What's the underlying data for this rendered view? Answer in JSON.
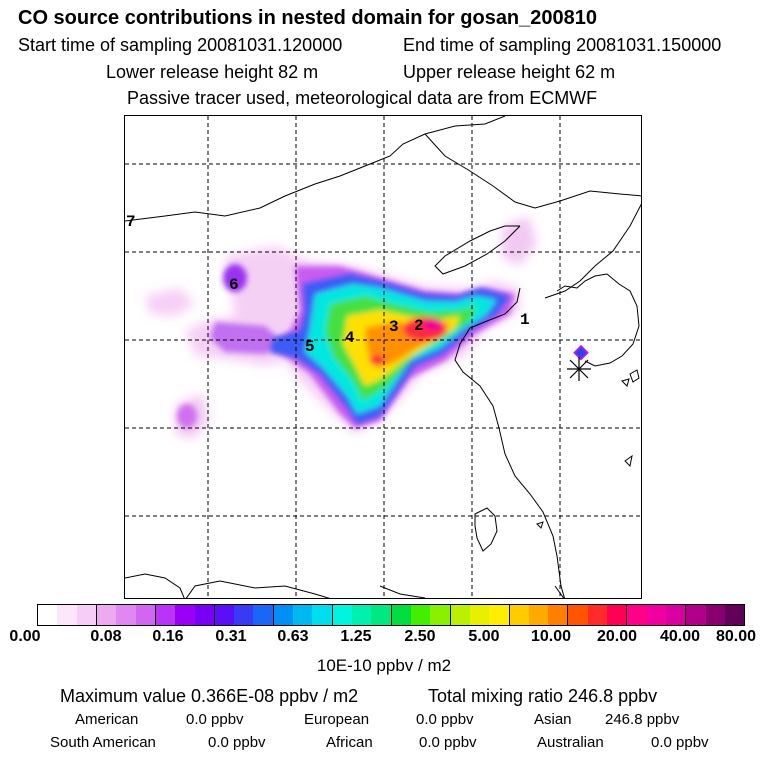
{
  "title": "CO  source contributions in nested domain for gosan_200810",
  "sampling": {
    "start": "Start time of sampling 20081031.120000",
    "end": "End time of sampling 20081031.150000"
  },
  "release": {
    "lower": "Lower release height   82 m",
    "upper": "Upper release height   62 m"
  },
  "note": "Passive tracer used, meteorological data are from ECMWF",
  "map_labels": [
    "1",
    "2",
    "3",
    "4",
    "5",
    "6",
    "7"
  ],
  "colorbar": {
    "colors": [
      "#ffffff",
      "#fbe6fb",
      "#f6cdf6",
      "#eeaaee",
      "#e088f0",
      "#d066f2",
      "#bb33f5",
      "#9a00f5",
      "#7a00f5",
      "#5a10f5",
      "#3a3af5",
      "#1a66f5",
      "#0090f5",
      "#00b8f0",
      "#00ddee",
      "#00f5e0",
      "#00f0b0",
      "#00e880",
      "#00dd40",
      "#44ee00",
      "#88f000",
      "#bbf000",
      "#e8f000",
      "#ffee00",
      "#ffcc00",
      "#ffaa00",
      "#ff8000",
      "#ff5500",
      "#ff2a2a",
      "#ff0055",
      "#ff0088",
      "#f000a0",
      "#d800a0",
      "#b0008a",
      "#880070",
      "#600058"
    ],
    "tick_labels": [
      "0.00",
      "0.08",
      "0.16",
      "0.31",
      "0.63",
      "1.25",
      "2.50",
      "5.00",
      "10.00",
      "20.00",
      "40.00",
      "80.00"
    ],
    "unit": "10E-10 ppbv / m2"
  },
  "summary": {
    "max_value": "Maximum value  0.366E-08 ppbv / m2",
    "total_mixing": "Total mixing ratio      246.8 ppbv",
    "contributions": [
      {
        "name": "American",
        "value": "0.0 ppbv"
      },
      {
        "name": "European",
        "value": "0.0 ppbv"
      },
      {
        "name": "Asian",
        "value": "246.8 ppbv"
      },
      {
        "name": "South American",
        "value": "0.0 ppbv"
      },
      {
        "name": "African",
        "value": "0.0 ppbv"
      },
      {
        "name": "Australian",
        "value": "0.0 ppbv"
      }
    ]
  }
}
